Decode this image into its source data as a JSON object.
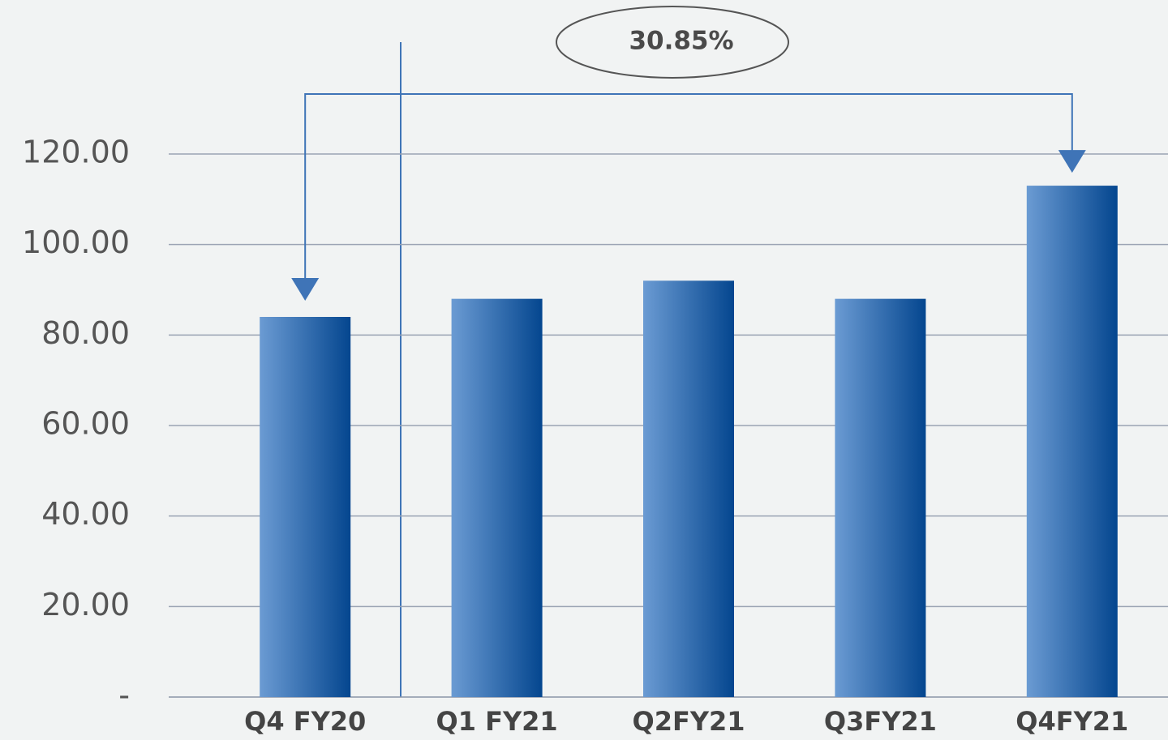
{
  "chart_data": {
    "type": "bar",
    "categories": [
      "Q4 FY20",
      "Q1 FY21",
      "Q2FY21",
      "Q3FY21",
      "Q4FY21"
    ],
    "values": [
      84,
      88,
      92,
      88,
      113
    ],
    "colors": [
      "#6b9bd3",
      "#04468f"
    ],
    "ylim": [
      0,
      120
    ],
    "yticks": [
      {
        "value": 0,
        "label": "-"
      },
      {
        "value": 20,
        "label": "20.00"
      },
      {
        "value": 40,
        "label": "40.00"
      },
      {
        "value": 60,
        "label": "60.00"
      },
      {
        "value": 80,
        "label": "80.00"
      },
      {
        "value": 100,
        "label": "100.00"
      },
      {
        "value": 120,
        "label": "120.00"
      }
    ],
    "grid": true,
    "annotation": "30.85%"
  }
}
